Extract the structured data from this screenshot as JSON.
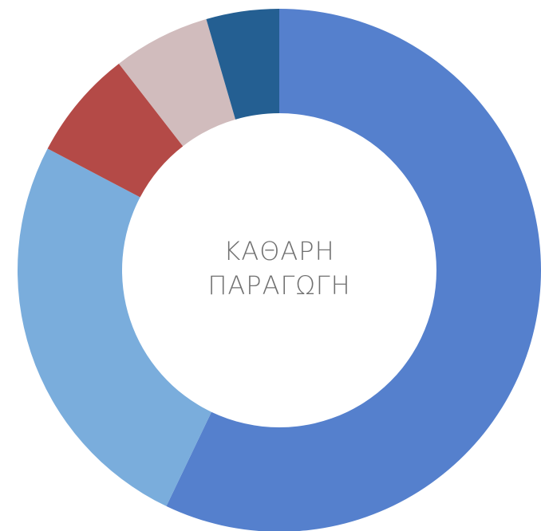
{
  "chart_data": {
    "type": "donut",
    "center_text": [
      "ΚΑΘΑΡΗ",
      "ΠΑΡΑΓΩΓΗ"
    ],
    "values": [
      57.1,
      25.6,
      6.8,
      6.0,
      4.5
    ],
    "colors": [
      "#5580cd",
      "#7aaddc",
      "#b44a47",
      "#d1bcbd",
      "#245f92"
    ]
  }
}
